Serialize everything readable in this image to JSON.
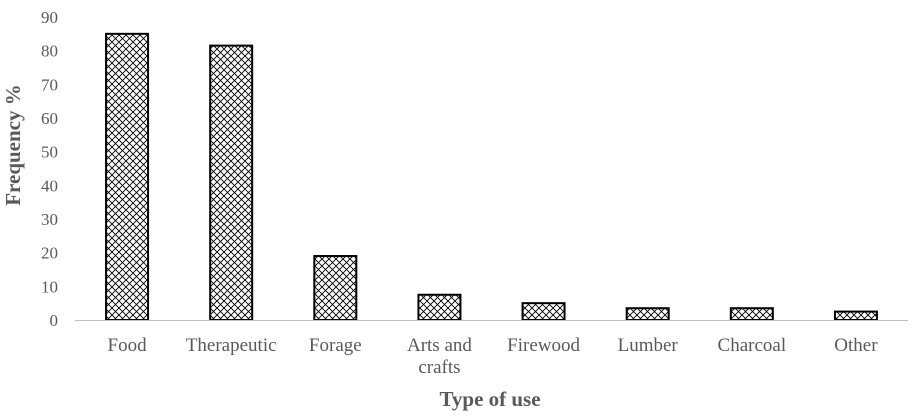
{
  "chart_data": {
    "type": "bar",
    "categories": [
      [
        "Food"
      ],
      [
        "Therapeutic"
      ],
      [
        "Forage"
      ],
      [
        "Arts and",
        "crafts"
      ],
      [
        "Firewood"
      ],
      [
        "Lumber"
      ],
      [
        "Charcoal"
      ],
      [
        "Other"
      ]
    ],
    "values": [
      85,
      81.5,
      19,
      7.5,
      5,
      3.5,
      3.5,
      2.5
    ],
    "xlabel": "Type of use",
    "ylabel": "Frequency %",
    "ylim": [
      0,
      90
    ],
    "yticks": [
      0,
      10,
      20,
      30,
      40,
      50,
      60,
      70,
      80,
      90
    ],
    "grid": false,
    "bar_fill": "crosshatch",
    "bar_stroke": "#000000",
    "axis_color": "#bfbfbf",
    "text_color": "#595959"
  }
}
